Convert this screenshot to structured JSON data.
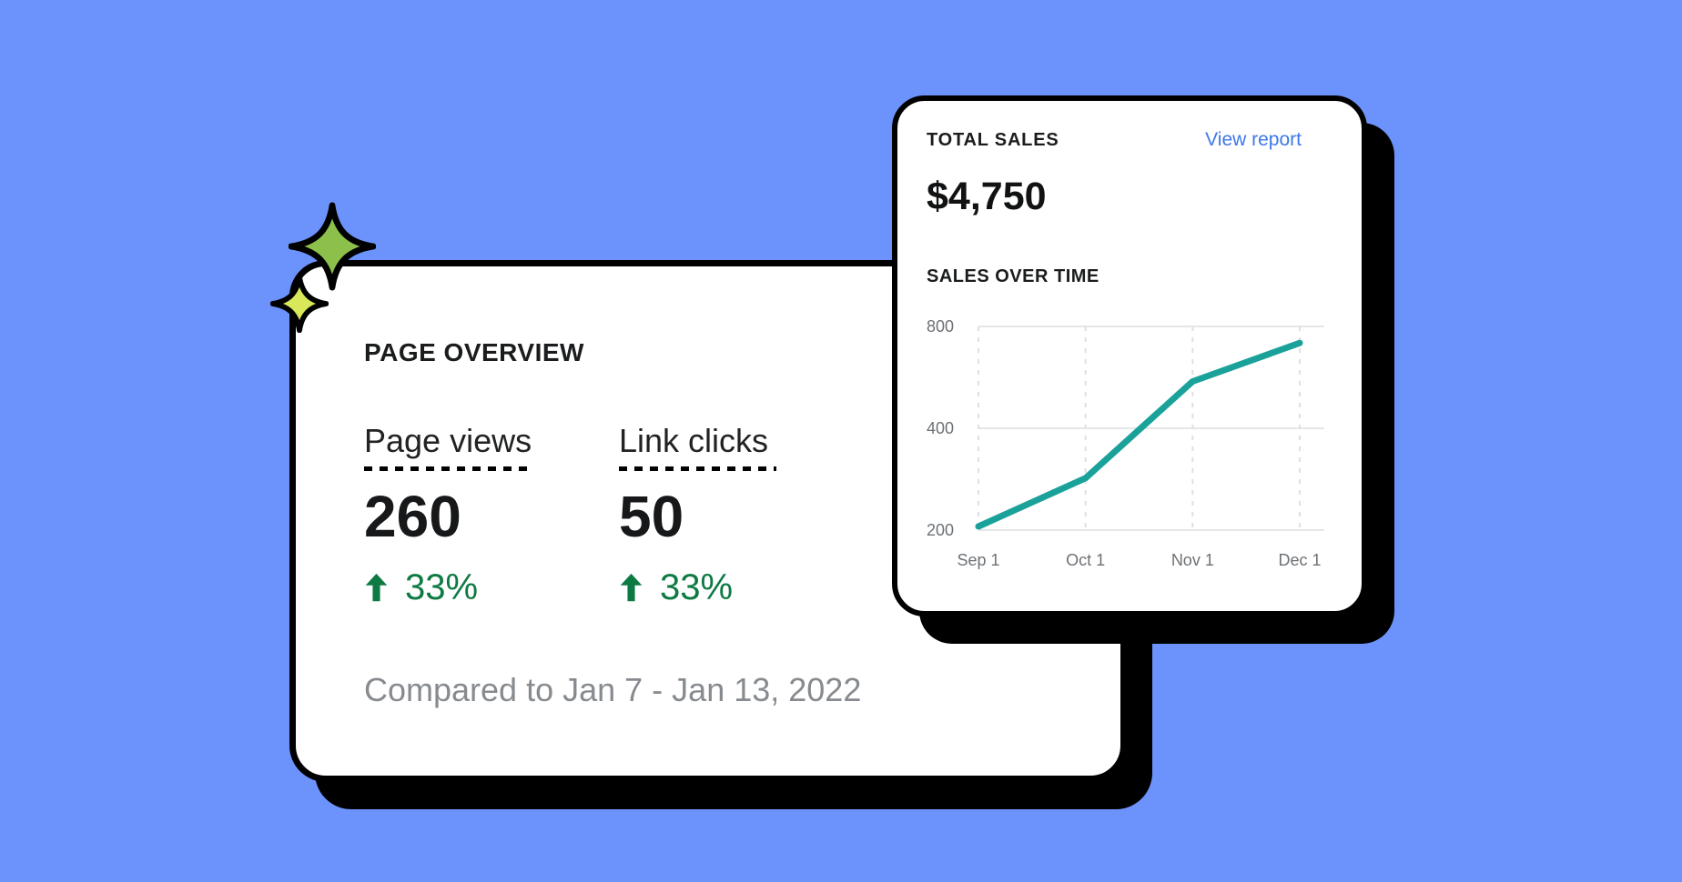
{
  "background_color": "#6C93FB",
  "page_overview_card": {
    "title": "PAGE OVERVIEW",
    "metrics": [
      {
        "label": "Page views",
        "value": "260",
        "change": "33%",
        "direction": "up"
      },
      {
        "label": "Link clicks",
        "value": "50",
        "change": "33%",
        "direction": "up"
      }
    ],
    "comparison_note": "Compared to Jan 7 - Jan 13, 2022",
    "change_color": "#0E7A43",
    "note_color": "#878B8F"
  },
  "total_sales_card": {
    "title": "TOTAL SALES",
    "link_label": "View report",
    "link_color": "#3D78E8",
    "amount": "$4,750",
    "chart_title": "SALES OVER TIME"
  },
  "chart_data": {
    "type": "line",
    "title": "SALES OVER TIME",
    "x": [
      "Sep 1",
      "Oct 1",
      "Nov 1",
      "Dec 1"
    ],
    "values": [
      205,
      285,
      550,
      715
    ],
    "y_ticks": [
      200,
      400,
      800
    ],
    "y_scale": "log2",
    "ylim": [
      200,
      800
    ],
    "grid": true,
    "legend": "none",
    "line_color": "#1AA29A",
    "solid_gridline_color": "#E4E6E8",
    "dashed_gridline_color": "#DDDFE2",
    "tick_label_color": "#6D7175"
  },
  "decorations": {
    "sparkle_large_color": "#8CC04B",
    "sparkle_small_color": "#D9E75A",
    "outline_color": "#000000",
    "shadow_color": "#000000"
  }
}
